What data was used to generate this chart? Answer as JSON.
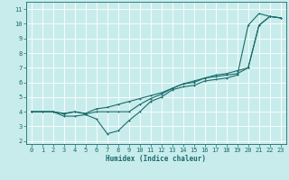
{
  "title": "",
  "xlabel": "Humidex (Indice chaleur)",
  "bg_color": "#c8ecec",
  "grid_color": "#ffffff",
  "line_color": "#1a6b6b",
  "xlim": [
    -0.5,
    23.5
  ],
  "ylim": [
    1.8,
    11.5
  ],
  "xticks": [
    0,
    1,
    2,
    3,
    4,
    5,
    6,
    7,
    8,
    9,
    10,
    11,
    12,
    13,
    14,
    15,
    16,
    17,
    18,
    19,
    20,
    21,
    22,
    23
  ],
  "yticks": [
    2,
    3,
    4,
    5,
    6,
    7,
    8,
    9,
    10,
    11
  ],
  "line1_x": [
    0,
    1,
    2,
    3,
    4,
    5,
    6,
    7,
    8,
    9,
    10,
    11,
    12,
    13,
    14,
    15,
    16,
    17,
    18,
    19,
    20,
    21,
    22,
    23
  ],
  "line1_y": [
    4.0,
    4.0,
    4.0,
    3.7,
    3.7,
    3.8,
    3.5,
    2.5,
    2.7,
    3.4,
    4.0,
    4.7,
    5.0,
    5.5,
    5.7,
    5.8,
    6.1,
    6.2,
    6.3,
    6.5,
    9.9,
    10.7,
    10.5,
    10.4
  ],
  "line2_x": [
    0,
    1,
    2,
    3,
    4,
    5,
    6,
    7,
    8,
    9,
    10,
    11,
    12,
    13,
    14,
    15,
    16,
    17,
    18,
    19,
    20,
    21,
    22,
    23
  ],
  "line2_y": [
    4.0,
    4.0,
    4.0,
    3.85,
    4.0,
    3.85,
    4.0,
    4.0,
    4.0,
    4.0,
    4.5,
    4.9,
    5.2,
    5.6,
    5.9,
    6.0,
    6.3,
    6.4,
    6.5,
    6.6,
    7.0,
    9.9,
    10.5,
    10.4
  ],
  "line3_x": [
    0,
    1,
    2,
    3,
    4,
    5,
    6,
    7,
    8,
    9,
    10,
    11,
    12,
    13,
    14,
    15,
    16,
    17,
    18,
    19,
    20,
    21,
    22,
    23
  ],
  "line3_y": [
    4.0,
    4.0,
    4.0,
    3.9,
    4.0,
    3.9,
    4.2,
    4.3,
    4.5,
    4.7,
    4.9,
    5.1,
    5.3,
    5.6,
    5.9,
    6.1,
    6.3,
    6.5,
    6.6,
    6.8,
    7.0,
    9.9,
    10.5,
    10.4
  ],
  "xlabel_fontsize": 5.5,
  "tick_fontsize": 5.0,
  "lw": 0.8,
  "ms": 2.0
}
